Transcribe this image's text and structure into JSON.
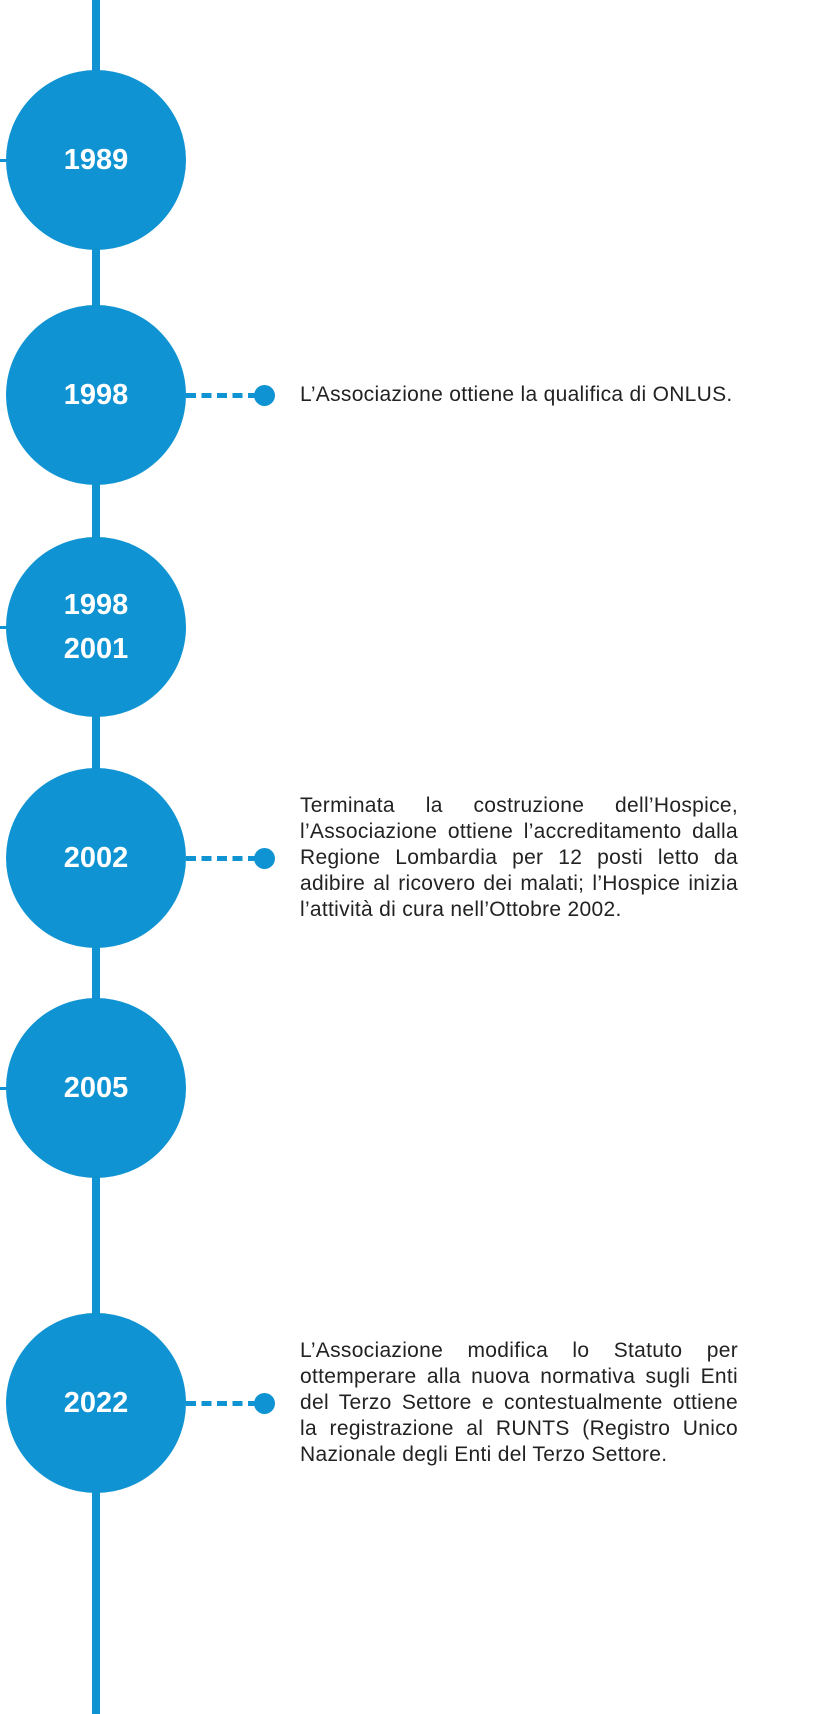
{
  "timeline": [
    {
      "years": [
        "1989"
      ]
    },
    {
      "years": [
        "1998"
      ],
      "text": "L’Associazione ottiene la qualifica di ONLUS."
    },
    {
      "years": [
        "1998",
        "2001"
      ]
    },
    {
      "years": [
        "2002"
      ],
      "text": "Terminata la costruzione dell’Hospice, l’Associazione ottiene l’accreditamento dalla Regione Lombardia per 12 posti letto da adibire al ricovero dei malati; l’Hospice inizia l’attività di cura nell’Ottobre 2002."
    },
    {
      "years": [
        "2005"
      ]
    },
    {
      "years": [
        "2022"
      ],
      "text": "L’Associazione modifica lo Statuto per ottemperare alla nuova normativa sugli Enti del Terzo Settore e contestualmente ottiene la registrazione al RUNTS (Registro Unico Nazionale degli Enti del Terzo Settore."
    }
  ]
}
